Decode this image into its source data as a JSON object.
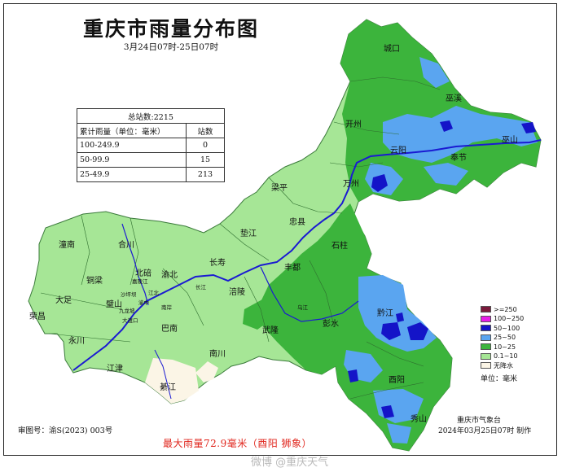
{
  "title": "重庆市雨量分布图",
  "subtitle": "3月24日07时-25日07时",
  "stats": {
    "total": "总站数:2215",
    "col_range": "累计雨量（单位：毫米）",
    "col_count": "站数",
    "rows": [
      {
        "range": "100-249.9",
        "count": "0"
      },
      {
        "range": "50-99.9",
        "count": "15"
      },
      {
        "range": "25-49.9",
        "count": "213"
      }
    ]
  },
  "legend": {
    "items": [
      {
        "label": ">=250",
        "color": "#7a1a3c"
      },
      {
        "label": "100~250",
        "color": "#e61ee6"
      },
      {
        "label": "50~100",
        "color": "#1414c8"
      },
      {
        "label": "25~50",
        "color": "#5aa5f0"
      },
      {
        "label": "10~25",
        "color": "#3cb43c"
      },
      {
        "label": "0.1~10",
        "color": "#a6e696"
      },
      {
        "label": "无降水",
        "color": "#fbf5e6"
      }
    ],
    "unit": "单位：毫米"
  },
  "places": {
    "chengkou": "城口",
    "wuxi": "巫溪",
    "kaizhou": "开州",
    "wushan": "巫山",
    "yunyang": "云阳",
    "fengjie": "奉节",
    "wanzhou": "万州",
    "liangping": "梁平",
    "zhongxian": "忠县",
    "dianjiang": "垫江",
    "shizhu": "石柱",
    "changshou": "长寿",
    "fengdu": "丰都",
    "tongnan": "潼南",
    "hechuan": "合川",
    "tongliang": "铜梁",
    "beibei": "北碚",
    "yubei": "渝北",
    "dazu": "大足",
    "bishan": "璧山",
    "fuling": "涪陵",
    "rongchang": "荣昌",
    "yongchuan": "永川",
    "banan": "巴南",
    "wulong": "武隆",
    "pengshui": "彭水",
    "qianjiang": "黔江",
    "jiangjin": "江津",
    "nanchuan": "南川",
    "youyang": "酉阳",
    "qijiang": "綦江",
    "xiushan": "秀山",
    "shapingba": "沙坪坝",
    "jiulongpo": "九龙坡",
    "dadukou": "大渡口",
    "jiangbei": "江北",
    "yuzhong": "渝中",
    "nanan": "南岸",
    "yangtze": "长江",
    "jialing": "嘉陵江",
    "wujiang": "乌江"
  },
  "footer": {
    "map_no": "审图号：渝S(2023) 003号",
    "max_rain": "最大雨量72.9毫米（酉阳  狮象）",
    "org": "重庆市气象台",
    "made": "2024年03月25日07时  制作",
    "watermark": "微博 @重庆天气"
  }
}
